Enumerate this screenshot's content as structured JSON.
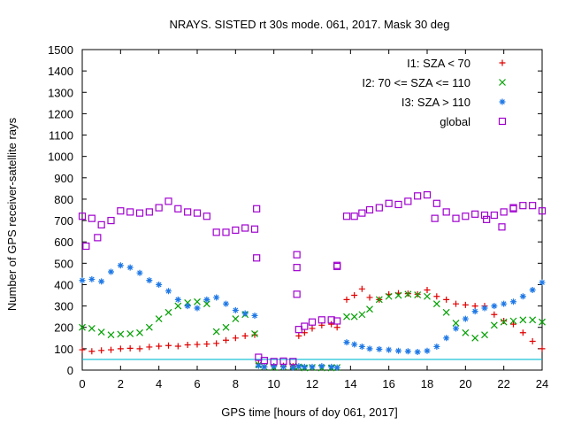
{
  "chart_data": {
    "type": "scatter",
    "title": "NRAYS. SISTED rt 30s mode. 061, 2017. Mask 30 deg",
    "xlabel": "GPS time [hours of doy 061, 2017]",
    "ylabel": "Number of GPS receiver-satellite rays",
    "xlim": [
      0,
      24
    ],
    "ylim": [
      0,
      1500
    ],
    "xticks": [
      "0",
      "2",
      "4",
      "6",
      "8",
      "10",
      "12",
      "14",
      "16",
      "18",
      "20",
      "22",
      "24"
    ],
    "yticks": [
      "0",
      "100",
      "200",
      "300",
      "400",
      "500",
      "600",
      "700",
      "800",
      "900",
      "1000",
      "1100",
      "1200",
      "1300",
      "1400",
      "1500"
    ],
    "threshold_line": {
      "y": 50,
      "color": "#00bcd4"
    },
    "series": [
      {
        "name": "I1: SZA < 70",
        "marker": "+",
        "color": "#e00000",
        "x": [
          0,
          0.5,
          1,
          1.5,
          2,
          2.5,
          3,
          3.5,
          4,
          4.5,
          5,
          5.5,
          6,
          6.5,
          7,
          7.5,
          8,
          8.5,
          9,
          9.2,
          9.5,
          10,
          10.5,
          11,
          11.3,
          11.6,
          12,
          12.5,
          13,
          13.3,
          13.8,
          14.2,
          14.6,
          15,
          15.5,
          16,
          16.5,
          17,
          17.5,
          18,
          18.5,
          19,
          19.5,
          20,
          20.5,
          21,
          21.5,
          22,
          22.5,
          23,
          23.5,
          24
        ],
        "values": [
          95,
          88,
          92,
          95,
          100,
          102,
          100,
          108,
          112,
          115,
          112,
          118,
          120,
          122,
          125,
          140,
          150,
          160,
          165,
          30,
          15,
          18,
          20,
          18,
          160,
          175,
          195,
          210,
          215,
          200,
          330,
          350,
          380,
          340,
          330,
          355,
          360,
          358,
          355,
          375,
          345,
          330,
          310,
          305,
          300,
          300,
          260,
          230,
          215,
          175,
          135,
          100
        ]
      },
      {
        "name": "I2: 70 <= SZA <= 110",
        "marker": "x",
        "color": "#00a000",
        "x": [
          0,
          0.5,
          1,
          1.5,
          2,
          2.5,
          3,
          3.5,
          4,
          4.5,
          5,
          5.5,
          6,
          6.5,
          7,
          7.5,
          8,
          8.5,
          9,
          9.2,
          9.5,
          10,
          10.5,
          11,
          11.3,
          11.6,
          12,
          12.5,
          13,
          13.3,
          13.8,
          14.2,
          14.6,
          15,
          15.5,
          16,
          16.5,
          17,
          17.5,
          18,
          18.5,
          19,
          19.5,
          20,
          20.5,
          21,
          21.5,
          22,
          22.5,
          23,
          23.5,
          24
        ],
        "values": [
          200,
          195,
          178,
          165,
          168,
          170,
          175,
          200,
          240,
          270,
          300,
          315,
          320,
          310,
          180,
          200,
          240,
          260,
          170,
          25,
          15,
          12,
          15,
          18,
          15,
          10,
          12,
          10,
          10,
          12,
          250,
          250,
          260,
          285,
          330,
          345,
          350,
          355,
          352,
          345,
          310,
          270,
          220,
          175,
          150,
          165,
          210,
          225,
          230,
          235,
          235,
          225
        ]
      },
      {
        "name": "I3: SZA > 110",
        "marker": "*",
        "color": "#1e78e6",
        "x": [
          0,
          0.5,
          1,
          1.5,
          2,
          2.5,
          3,
          3.5,
          4,
          4.5,
          5,
          5.5,
          6,
          6.5,
          7,
          7.5,
          8,
          8.5,
          9,
          9.2,
          9.5,
          10,
          10.5,
          11,
          11.3,
          11.6,
          12,
          12.5,
          13,
          13.3,
          13.8,
          14.2,
          14.6,
          15,
          15.5,
          16,
          16.5,
          17,
          17.5,
          18,
          18.5,
          19,
          19.5,
          20,
          20.5,
          21,
          21.5,
          22,
          22.5,
          23,
          23.5,
          24
        ],
        "values": [
          420,
          425,
          415,
          460,
          490,
          480,
          455,
          420,
          400,
          370,
          330,
          300,
          290,
          330,
          340,
          310,
          280,
          265,
          255,
          20,
          15,
          18,
          15,
          12,
          18,
          15,
          15,
          18,
          15,
          12,
          130,
          120,
          110,
          100,
          98,
          95,
          90,
          88,
          85,
          90,
          110,
          150,
          195,
          240,
          275,
          290,
          300,
          310,
          320,
          345,
          375,
          410
        ]
      },
      {
        "name": "global",
        "marker": "square",
        "color": "#a000d0",
        "x": [
          0,
          0.5,
          1,
          1.5,
          2,
          2.5,
          3,
          3.5,
          4,
          4.5,
          5,
          5.5,
          6,
          6.5,
          7,
          7.5,
          8,
          8.5,
          9,
          9.2,
          9.5,
          10,
          10.5,
          11,
          11.3,
          11.6,
          12,
          12.5,
          13,
          13.3,
          13.8,
          14.2,
          14.6,
          15,
          15.5,
          16,
          16.5,
          17,
          17.5,
          18,
          18.5,
          19,
          19.5,
          20,
          20.5,
          21,
          21.5,
          22,
          22.5,
          23,
          23.5,
          24
        ],
        "values": [
          720,
          710,
          680,
          700,
          745,
          740,
          735,
          740,
          760,
          790,
          755,
          740,
          735,
          720,
          645,
          645,
          655,
          665,
          660,
          60,
          45,
          40,
          42,
          40,
          190,
          205,
          225,
          235,
          235,
          230,
          720,
          720,
          735,
          750,
          760,
          780,
          775,
          790,
          815,
          820,
          780,
          740,
          710,
          720,
          730,
          725,
          725,
          740,
          760,
          770,
          770,
          745
        ]
      },
      {
        "name": "",
        "marker": "square",
        "color": "#a000d0",
        "x": [
          0.2,
          0.8,
          9.1,
          9.1,
          11.2,
          11.2,
          11.2,
          13.3,
          13.3,
          18.4,
          21.1,
          21.9,
          22.5
        ],
        "values": [
          580,
          620,
          755,
          525,
          480,
          355,
          540,
          490,
          485,
          710,
          705,
          670,
          755
        ]
      }
    ]
  }
}
